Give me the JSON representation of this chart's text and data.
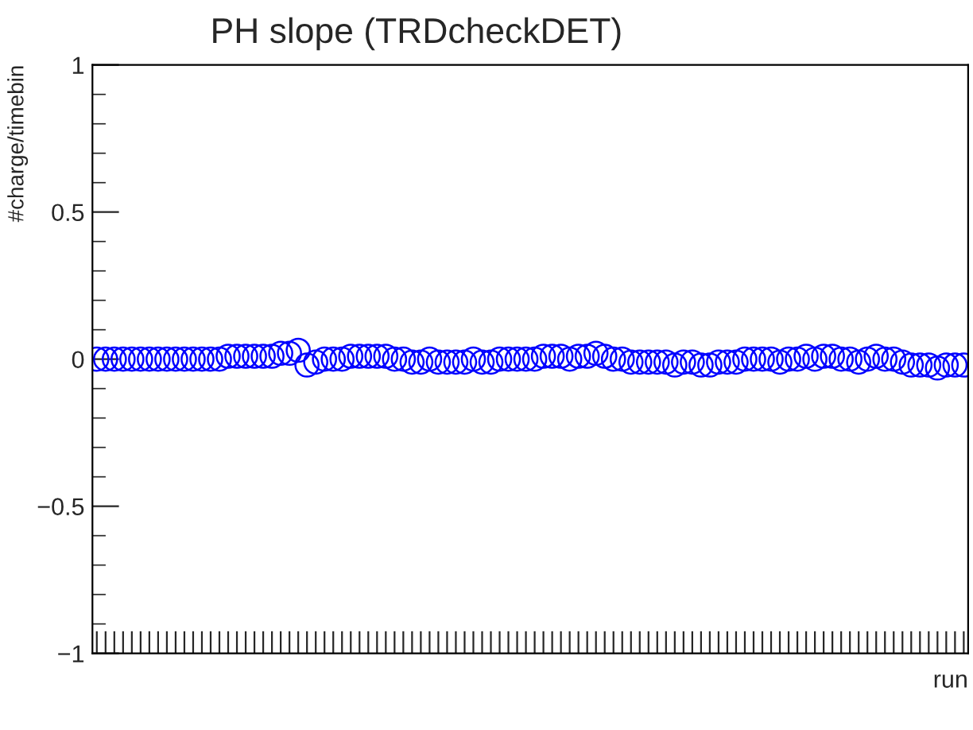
{
  "chart_data": {
    "type": "scatter",
    "title": "PH slope (TRDcheckDET)",
    "xlabel": "run",
    "ylabel": "#charge/timebin",
    "categories": [
      null,
      null,
      null,
      null,
      null,
      null,
      null,
      null,
      null,
      null,
      null,
      null,
      null,
      null,
      null,
      null,
      null,
      null,
      null,
      null,
      null,
      null,
      null,
      null,
      null,
      null,
      null,
      null,
      null,
      null,
      null,
      null,
      null,
      null,
      null,
      null,
      null,
      null,
      null,
      null,
      null,
      null,
      null,
      null,
      null,
      null,
      null,
      null,
      null,
      null,
      null,
      null,
      null,
      null,
      null,
      null,
      null,
      null,
      null,
      null,
      null,
      null,
      null,
      null,
      null,
      null,
      null,
      null,
      null,
      null,
      null,
      null,
      null,
      null,
      null,
      null,
      null,
      null,
      null,
      null,
      null,
      null,
      null,
      null,
      null,
      null,
      null,
      null,
      null,
      null,
      null,
      null,
      null,
      null,
      null,
      null,
      null,
      null,
      null,
      null
    ],
    "series": [
      {
        "color": "#0000ff",
        "values": [
          0,
          0,
          0,
          0,
          0,
          0,
          0,
          0,
          0,
          0,
          0,
          0,
          0,
          0,
          0,
          0.01,
          0.01,
          0.01,
          0.01,
          0.01,
          0.01,
          0.02,
          0.02,
          0.03,
          -0.02,
          -0.01,
          0,
          0,
          0,
          0.01,
          0.01,
          0.01,
          0.01,
          0.01,
          0,
          0,
          -0.01,
          -0.01,
          0,
          -0.01,
          -0.01,
          -0.01,
          -0.01,
          0,
          -0.01,
          -0.01,
          0,
          0,
          0,
          0,
          0,
          0.01,
          0.01,
          0.01,
          0,
          0.01,
          0.01,
          0.02,
          0.01,
          0,
          0,
          -0.01,
          -0.01,
          -0.01,
          -0.01,
          -0.01,
          -0.02,
          -0.01,
          -0.01,
          -0.02,
          -0.02,
          -0.01,
          -0.01,
          -0.01,
          0,
          0,
          0,
          0,
          -0.01,
          0,
          0,
          0.01,
          0,
          0.01,
          0.01,
          0,
          0,
          -0.01,
          0,
          0.01,
          0,
          0,
          -0.01,
          -0.02,
          -0.02,
          -0.02,
          -0.03,
          -0.02,
          -0.02,
          -0.02
        ]
      }
    ],
    "ylim": [
      -1,
      1
    ],
    "yticks": [
      {
        "value": -1,
        "label": "−1"
      },
      {
        "value": -0.5,
        "label": "−0.5"
      },
      0,
      0.5,
      1
    ],
    "marker": "circle",
    "grid": false,
    "legend": false
  }
}
